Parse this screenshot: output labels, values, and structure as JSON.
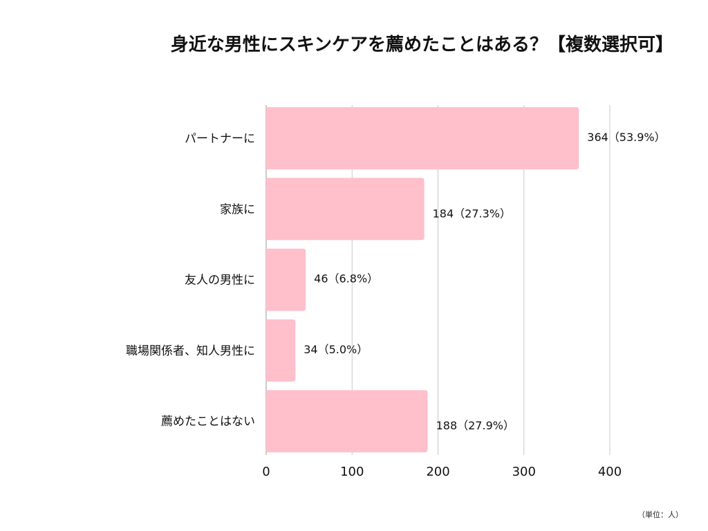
{
  "chart_data": {
    "type": "bar",
    "orientation": "horizontal",
    "title": "身近な男性にスキンケアを薦めたことはある？【複数選択可】",
    "categories": [
      "パートナーに",
      "家族に",
      "友人の男性に",
      "職場関係者、知人男性に",
      "薦めたことはない"
    ],
    "values": [
      364,
      184,
      46,
      34,
      188
    ],
    "data_labels": [
      "364（53.9%）",
      "184（27.3%）",
      "46（6.8%）",
      "34（5.0%）",
      "188（27.9%）"
    ],
    "xticks": [
      "0",
      "100",
      "200",
      "300",
      "400"
    ],
    "xlim": [
      0,
      400
    ],
    "grid": "vertical",
    "bar_color": "#FFC0CB",
    "grid_color": "#C8C8C8",
    "unit_note": "（単位：人）"
  }
}
